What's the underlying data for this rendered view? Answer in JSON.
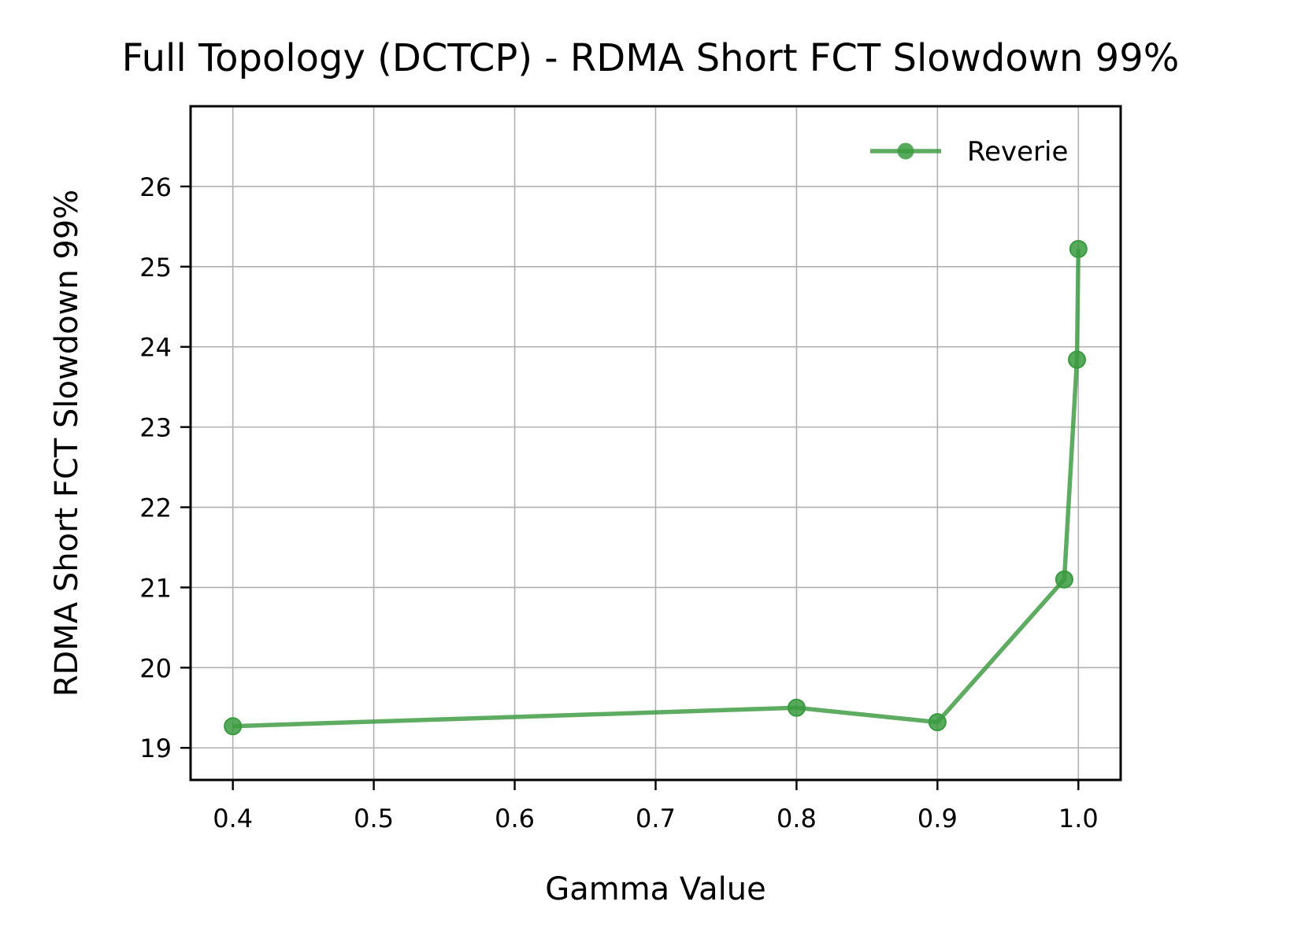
{
  "chart_data": {
    "type": "line",
    "title": "Full Topology (DCTCP) - RDMA Short FCT Slowdown 99%",
    "xlabel": "Gamma Value",
    "ylabel": "RDMA Short FCT Slowdown 99%",
    "xlim": [
      0.37,
      1.03
    ],
    "ylim": [
      18.6,
      27.0
    ],
    "xticks": [
      0.4,
      0.5,
      0.6,
      0.7,
      0.8,
      0.9,
      1.0
    ],
    "xtick_labels": [
      "0.4",
      "0.5",
      "0.6",
      "0.7",
      "0.8",
      "0.9",
      "1.0"
    ],
    "yticks": [
      19,
      20,
      21,
      22,
      23,
      24,
      25,
      26
    ],
    "ytick_labels": [
      "19",
      "20",
      "21",
      "22",
      "23",
      "24",
      "25",
      "26"
    ],
    "grid": true,
    "legend_position": "upper right",
    "series": [
      {
        "name": "Reverie",
        "color": "#3a9a3f",
        "marker": "circle",
        "x": [
          0.4,
          0.8,
          0.9,
          0.99,
          0.999,
          1.0
        ],
        "y": [
          19.27,
          19.5,
          19.32,
          21.1,
          23.84,
          25.22
        ]
      }
    ]
  }
}
